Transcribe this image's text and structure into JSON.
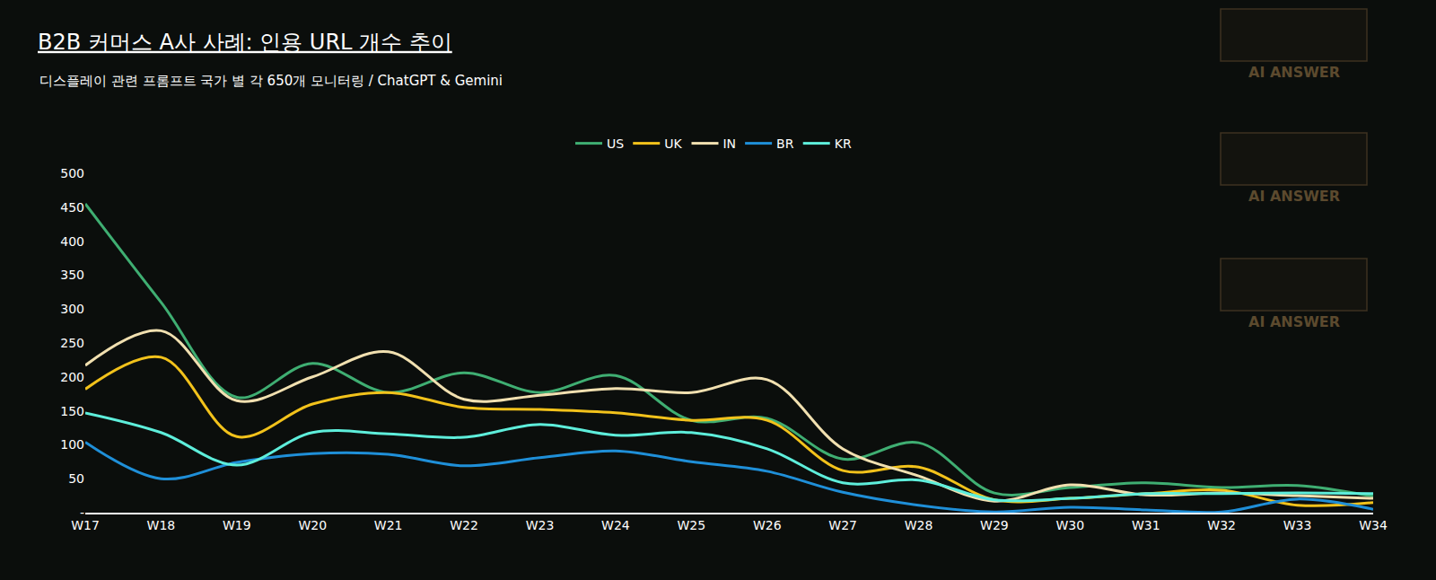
{
  "chart_data": {
    "type": "line",
    "title": "B2B 커머스 A사 사례: 인용 URL 개수 추이",
    "subtitle": "디스플레이 관련 프롬프트 국가 별 각 650개 모니터링 / ChatGPT & Gemini",
    "annotations": [
      "AI ANSWER",
      "AI ANSWER",
      "AI ANSWER"
    ],
    "categories": [
      "W17",
      "W18",
      "W19",
      "W20",
      "W21",
      "W22",
      "W23",
      "W24",
      "W25",
      "W26",
      "W27",
      "W28",
      "W29",
      "W30",
      "W31",
      "W32",
      "W33",
      "W34"
    ],
    "series": [
      {
        "name": "US",
        "color": "#3fae72",
        "values": [
          455,
          310,
          170,
          220,
          177,
          206,
          177,
          202,
          136,
          139,
          79,
          103,
          29,
          37,
          44,
          37,
          40,
          24
        ]
      },
      {
        "name": "UK",
        "color": "#f2c21b",
        "values": [
          182,
          229,
          112,
          160,
          177,
          155,
          152,
          147,
          136,
          136,
          62,
          67,
          19,
          21,
          28,
          33,
          11,
          15
        ]
      },
      {
        "name": "IN",
        "color": "#f1e0b0",
        "values": [
          217,
          268,
          165,
          200,
          237,
          167,
          173,
          183,
          177,
          196,
          94,
          54,
          17,
          41,
          26,
          29,
          25,
          21
        ]
      },
      {
        "name": "BR",
        "color": "#1f8fd8",
        "values": [
          104,
          50,
          74,
          87,
          86,
          69,
          81,
          91,
          75,
          61,
          30,
          11,
          1,
          8,
          4,
          1,
          20,
          5
        ]
      },
      {
        "name": "KR",
        "color": "#5eeedb",
        "values": [
          147,
          118,
          70,
          118,
          116,
          111,
          130,
          114,
          118,
          94,
          44,
          48,
          19,
          21,
          28,
          28,
          29,
          28
        ]
      }
    ],
    "ylim": [
      0,
      500
    ],
    "yticks": [
      {
        "value": 0,
        "label": "-"
      },
      50,
      100,
      150,
      200,
      250,
      300,
      350,
      400,
      450,
      500
    ],
    "grid": false,
    "legend": "top",
    "line_style": "smooth"
  }
}
